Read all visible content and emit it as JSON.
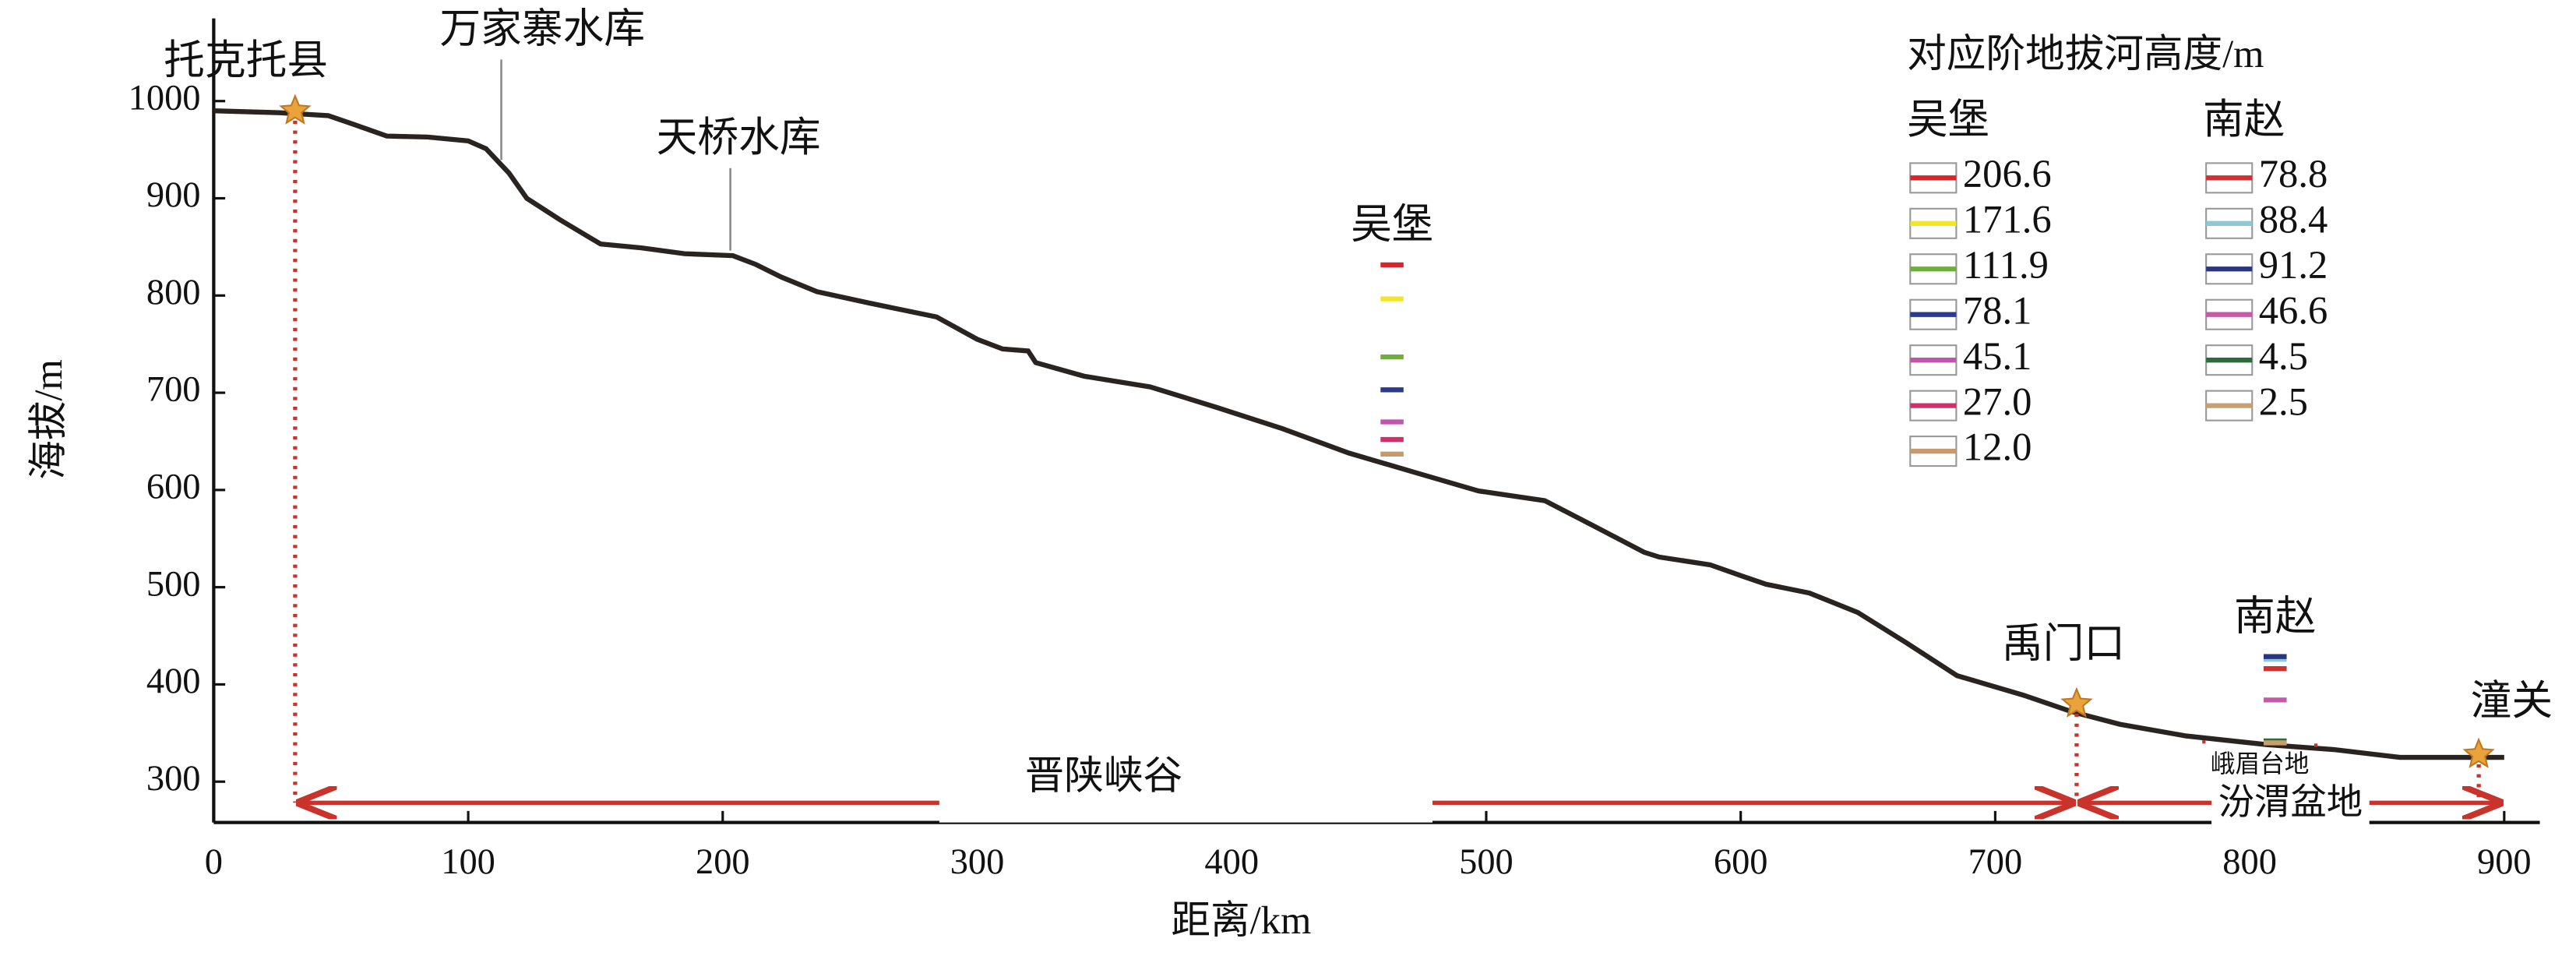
{
  "chart_data": {
    "type": "line",
    "xlabel": "距离/km",
    "ylabel": "海拔/m",
    "xlim": [
      0,
      914
    ],
    "ylim": [
      258,
      1085
    ],
    "xticks": [
      0,
      100,
      200,
      300,
      400,
      500,
      600,
      700,
      800,
      900
    ],
    "yticks": [
      300,
      400,
      500,
      600,
      700,
      800,
      900,
      1000
    ],
    "grid": false,
    "series": [
      {
        "color": "#2a2420",
        "x": [
          0,
          26,
          45,
          55,
          68,
          84,
          100,
          107,
          116,
          123,
          136,
          152,
          168,
          185,
          204,
          213,
          223,
          237,
          258,
          284,
          300,
          310,
          320,
          323,
          342,
          368,
          394,
          420,
          446,
          472,
          497,
          523,
          543,
          562,
          568,
          588,
          601,
          610,
          627,
          646,
          665,
          685,
          711,
          730,
          749,
          775,
          807,
          833,
          859,
          879,
          900
        ],
        "values": [
          990,
          988,
          985,
          976,
          964,
          963,
          959,
          951,
          926,
          900,
          878,
          853,
          849,
          843,
          841,
          832,
          819,
          804,
          792,
          778,
          755,
          745,
          743,
          731,
          717,
          706,
          685,
          663,
          638,
          618,
          599,
          589,
          562,
          536,
          531,
          523,
          511,
          503,
          494,
          474,
          443,
          409,
          389,
          372,
          359,
          347,
          338,
          333,
          325,
          325,
          325
        ]
      }
    ],
    "points": [
      {
        "name": "托克托县",
        "x": 32,
        "y": 990
      },
      {
        "name": "禹门口",
        "x": 732,
        "y": 380
      },
      {
        "name": "潼关",
        "x": 890,
        "y": 328
      }
    ],
    "annotations": [
      {
        "text": "万家寨水库",
        "x": 113
      },
      {
        "text": "天桥水库",
        "x": 203
      }
    ],
    "regions": [
      {
        "name": "晋陕峡谷",
        "from": 32,
        "to": 732
      },
      {
        "name": "汾渭盆地",
        "from": 732,
        "to": 900
      },
      {
        "name": "峨眉台地",
        "from": 782,
        "to": 826
      }
    ],
    "legend_title": "对应阶地拔河高度/m",
    "stations": [
      {
        "name": "吴堡",
        "x": 463,
        "values": [
          206.6,
          171.6,
          111.9,
          78.1,
          45.1,
          27.0,
          12.0
        ],
        "value_labels": [
          "206.6",
          "171.6",
          "111.9",
          "78.1",
          "45.1",
          "27.0",
          "12.0"
        ],
        "colors": [
          "#d7262b",
          "#f2e52a",
          "#6fae3c",
          "#2b3a8c",
          "#c055b0",
          "#d0306a",
          "#c69a6d"
        ]
      },
      {
        "name": "南赵",
        "x": 810,
        "values": [
          78.8,
          88.4,
          91.2,
          46.6,
          4.5,
          2.5
        ],
        "colors": [
          "#d03030",
          "#8cc8d8",
          "#2a3580",
          "#c55aa8",
          "#2d6b3a",
          "#c8a070"
        ]
      }
    ]
  }
}
